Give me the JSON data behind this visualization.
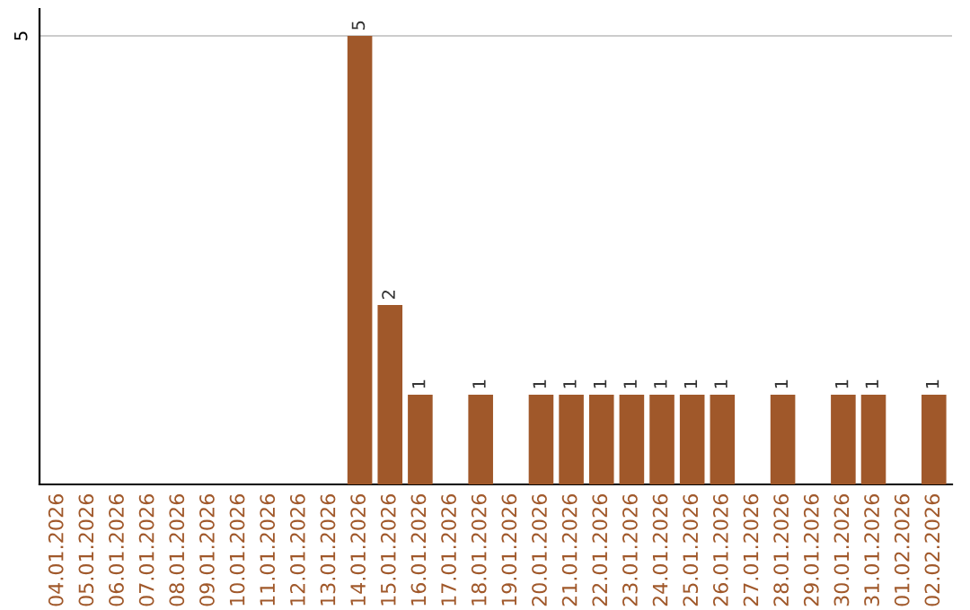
{
  "chart_data": {
    "type": "bar",
    "categories": [
      "04.01.2026",
      "05.01.2026",
      "06.01.2026",
      "07.01.2026",
      "08.01.2026",
      "09.01.2026",
      "10.01.2026",
      "11.01.2026",
      "12.01.2026",
      "13.01.2026",
      "14.01.2026",
      "15.01.2026",
      "16.01.2026",
      "17.01.2026",
      "18.01.2026",
      "19.01.2026",
      "20.01.2026",
      "21.01.2026",
      "22.01.2026",
      "23.01.2026",
      "24.01.2026",
      "25.01.2026",
      "26.01.2026",
      "27.01.2026",
      "28.01.2026",
      "29.01.2026",
      "30.01.2026",
      "31.01.2026",
      "01.02.2026",
      "02.02.2026"
    ],
    "values": [
      0,
      0,
      0,
      0,
      0,
      0,
      0,
      0,
      0,
      0,
      5,
      2,
      1,
      0,
      1,
      0,
      1,
      1,
      1,
      1,
      1,
      1,
      1,
      0,
      1,
      0,
      1,
      1,
      0,
      1
    ],
    "value_labels": [
      null,
      null,
      null,
      null,
      null,
      null,
      null,
      null,
      null,
      null,
      "5",
      "2",
      "1",
      null,
      "1",
      null,
      "1",
      "1",
      "1",
      "1",
      "1",
      "1",
      "1",
      null,
      "1",
      null,
      "1",
      "1",
      null,
      "1"
    ],
    "color": "#a0582a",
    "ylim": [
      0,
      5.3
    ],
    "yticks": [
      5
    ],
    "grid": "y"
  }
}
